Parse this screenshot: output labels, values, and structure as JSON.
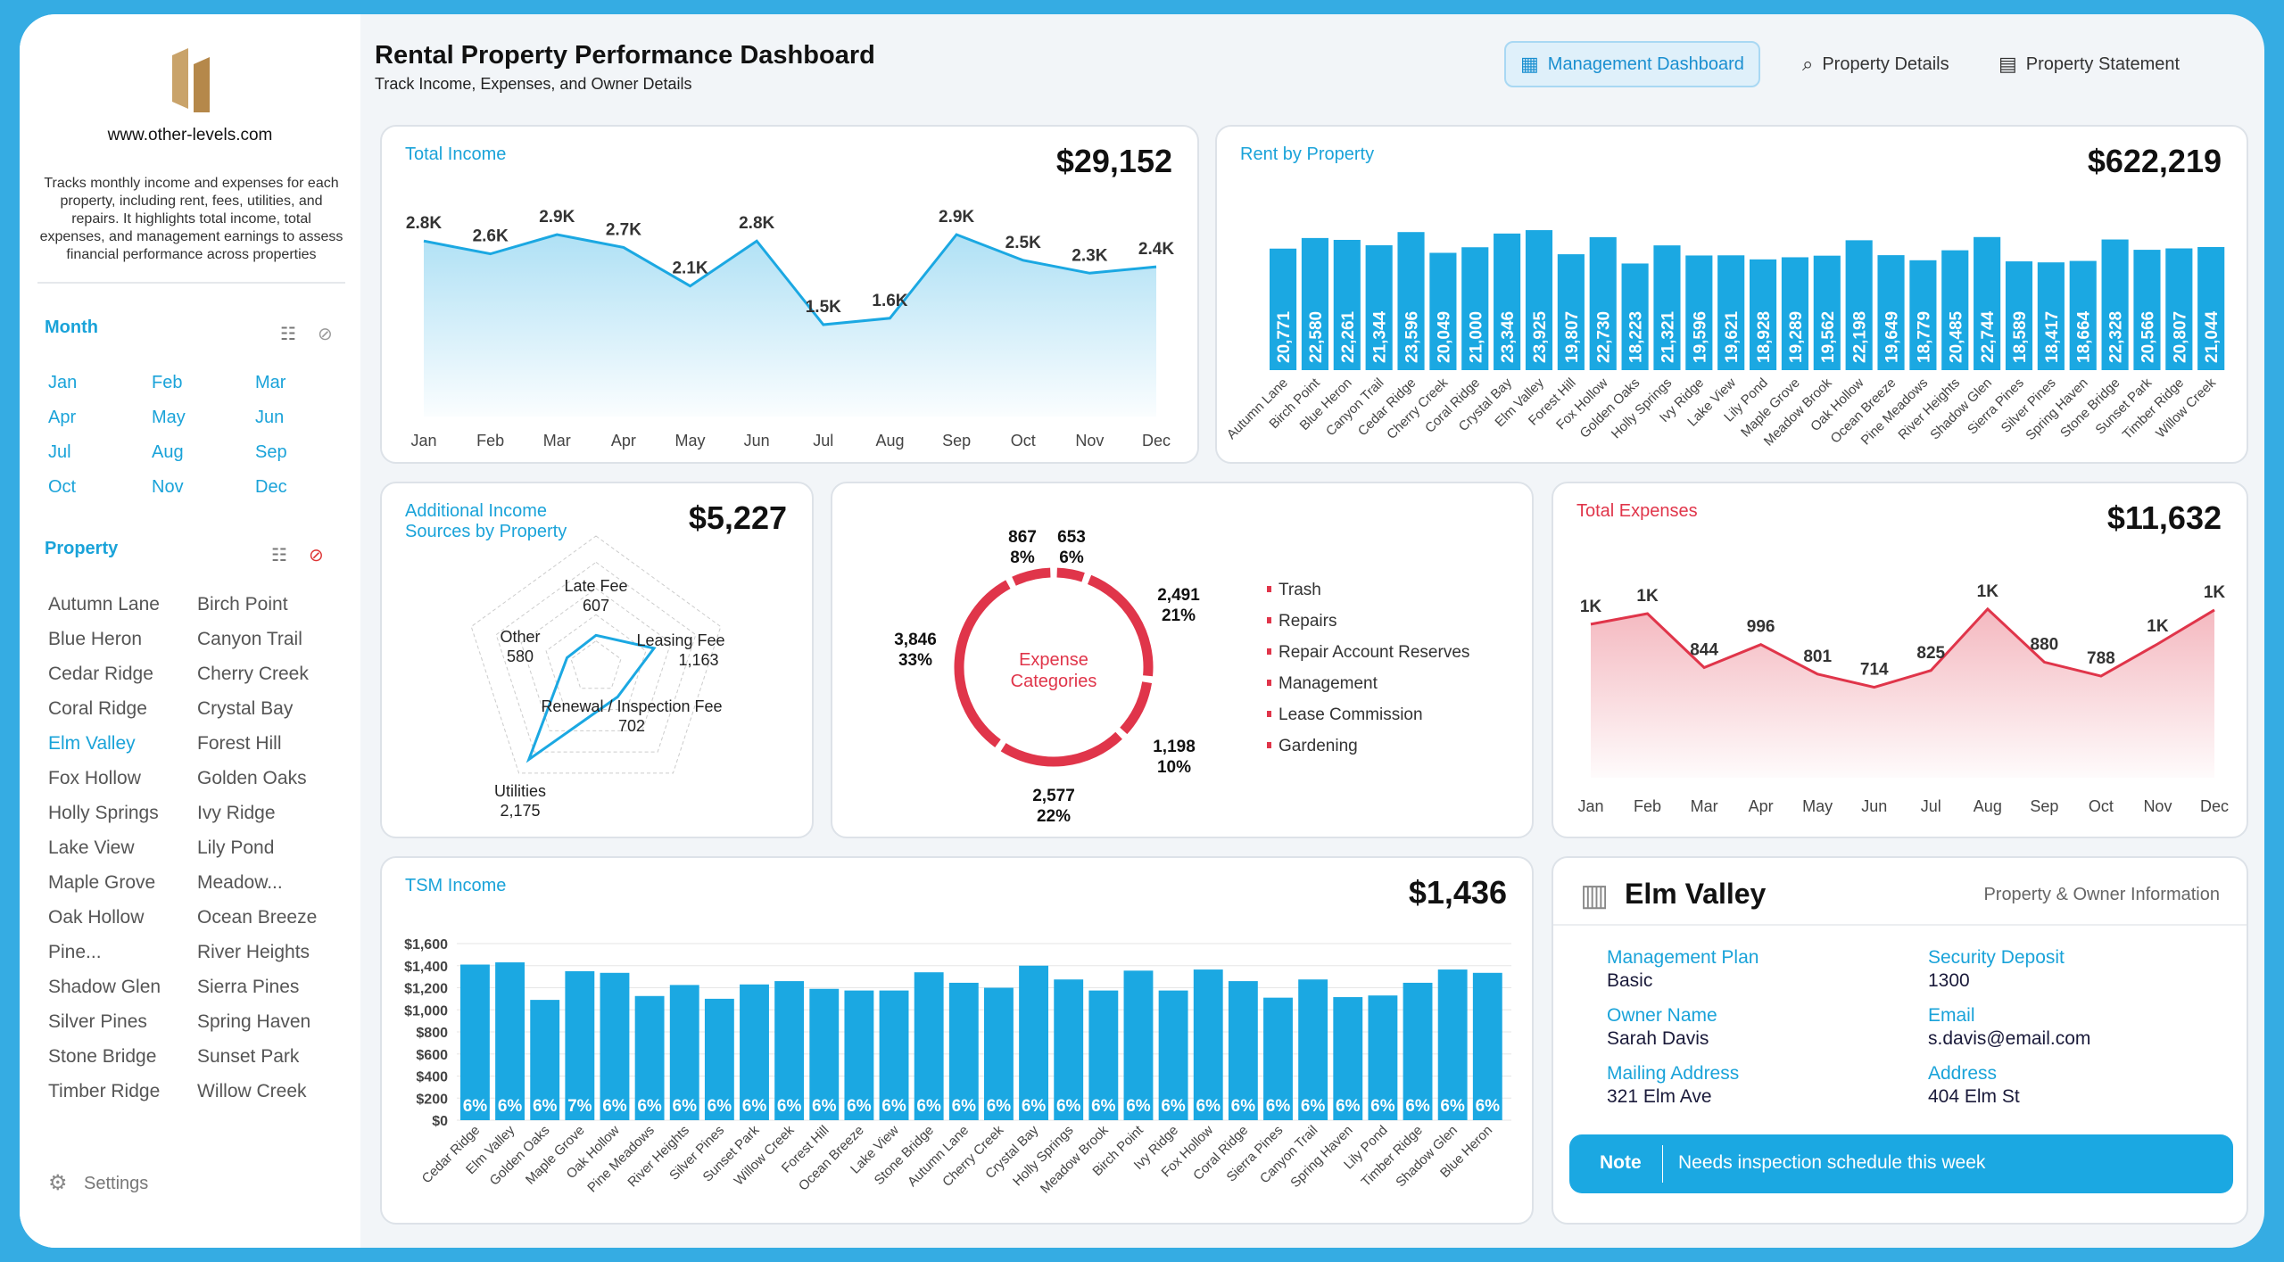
{
  "header": {
    "title": "Rental Property Performance Dashboard",
    "subtitle": "Track Income, Expenses, and Owner Details",
    "nav": [
      {
        "label": "Management Dashboard",
        "icon": "dashboard-icon",
        "active": true
      },
      {
        "label": "Property Details",
        "icon": "magnifier-chart-icon"
      },
      {
        "label": "Property Statement",
        "icon": "table-icon"
      }
    ]
  },
  "sidebar": {
    "logo_text": "www.other-levels.com",
    "description": "Tracks monthly income and expenses for each property, including rent, fees, utilities, and repairs. It highlights total income, total expenses, and management earnings to assess financial performance across properties",
    "month_title": "Month",
    "months": [
      "Jan",
      "Feb",
      "Mar",
      "Apr",
      "May",
      "Jun",
      "Jul",
      "Aug",
      "Sep",
      "Oct",
      "Nov",
      "Dec"
    ],
    "property_title": "Property",
    "selected_property": "Elm Valley",
    "properties": [
      "Autumn Lane",
      "Birch Point",
      "Blue Heron",
      "Canyon Trail",
      "Cedar Ridge",
      "Cherry Creek",
      "Coral Ridge",
      "Crystal Bay",
      "Elm Valley",
      "Forest Hill",
      "Fox Hollow",
      "Golden Oaks",
      "Holly Springs",
      "Ivy Ridge",
      "Lake View",
      "Lily Pond",
      "Maple Grove",
      "Meadow...",
      "Oak Hollow",
      "Ocean Breeze",
      "Pine...",
      "River Heights",
      "Shadow Glen",
      "Sierra Pines",
      "Silver Pines",
      "Spring Haven",
      "Stone Bridge",
      "Sunset Park",
      "Timber Ridge",
      "Willow Creek"
    ],
    "settings_label": "Settings"
  },
  "colors": {
    "accent": "#1aa3d9",
    "bar": "#1ba8e2",
    "expense": "#e0354a",
    "frame": "#35ace3"
  },
  "cards": {
    "total_income": {
      "title": "Total Income",
      "value": "$29,152"
    },
    "rent": {
      "title": "Rent by Property",
      "value": "$622,219"
    },
    "additional": {
      "title1": "Additional Income",
      "title2": "Sources by Property",
      "value": "$5,227"
    },
    "expense_cat": {
      "center1": "Expense",
      "center2": "Categories"
    },
    "total_expenses": {
      "title": "Total Expenses",
      "value": "$11,632"
    },
    "tsm": {
      "title": "TSM Income",
      "value": "$1,436"
    },
    "property_info": {
      "name": "Elm Valley",
      "subtitle": "Property & Owner Information",
      "fields": [
        {
          "label": "Management Plan",
          "value": "Basic"
        },
        {
          "label": "Security Deposit",
          "value": "1300"
        },
        {
          "label": "Owner Name",
          "value": "Sarah Davis"
        },
        {
          "label": "Email",
          "value": "s.davis@email.com"
        },
        {
          "label": "Mailing Address",
          "value": "321 Elm Ave"
        },
        {
          "label": "Address",
          "value": "404 Elm St"
        }
      ],
      "note_label": "Note",
      "note": "Needs inspection schedule this week"
    }
  },
  "chart_data": [
    {
      "id": "income",
      "type": "area",
      "categories": [
        "Jan",
        "Feb",
        "Mar",
        "Apr",
        "May",
        "Jun",
        "Jul",
        "Aug",
        "Sep",
        "Oct",
        "Nov",
        "Dec"
      ],
      "values": [
        2.8,
        2.6,
        2.9,
        2.7,
        2.1,
        2.8,
        1.5,
        1.6,
        2.9,
        2.5,
        2.3,
        2.4
      ],
      "labels": [
        "2.8K",
        "2.6K",
        "2.9K",
        "2.7K",
        "2.1K",
        "2.8K",
        "1.5K",
        "1.6K",
        "2.9K",
        "2.5K",
        "2.3K",
        "2.4K"
      ]
    },
    {
      "id": "rent",
      "type": "bar",
      "categories": [
        "Autumn Lane",
        "Birch Point",
        "Blue Heron",
        "Canyon Trail",
        "Cedar Ridge",
        "Cherry Creek",
        "Coral Ridge",
        "Crystal Bay",
        "Elm Valley",
        "Forest Hill",
        "Fox Hollow",
        "Golden Oaks",
        "Holly Springs",
        "Ivy Ridge",
        "Lake View",
        "Lily Pond",
        "Maple Grove",
        "Meadow Brook",
        "Oak Hollow",
        "Ocean Breeze",
        "Pine Meadows",
        "River Heights",
        "Shadow Glen",
        "Sierra Pines",
        "Silver Pines",
        "Spring Haven",
        "Stone Bridge",
        "Sunset Park",
        "Timber Ridge",
        "Willow Creek"
      ],
      "values": [
        20771,
        22580,
        22261,
        21344,
        23596,
        20049,
        21000,
        23346,
        23925,
        19807,
        22730,
        18223,
        21321,
        19596,
        19621,
        18928,
        19289,
        19562,
        22198,
        19649,
        18779,
        20485,
        22744,
        18589,
        18417,
        18664,
        22328,
        20566,
        20807,
        21044
      ]
    },
    {
      "id": "radar",
      "type": "radar",
      "categories": [
        "Late Fee",
        "Leasing Fee",
        "Renewal / Inspection Fee",
        "Utilities",
        "Other"
      ],
      "values": [
        607,
        1163,
        702,
        2175,
        580
      ],
      "rmax": 2500
    },
    {
      "id": "donut",
      "type": "pie",
      "legend": [
        "Trash",
        "Repairs",
        "Repair Account Reserves",
        "Management",
        "Lease Commission",
        "Gardening"
      ],
      "values": [
        653,
        2491,
        1198,
        2577,
        3846,
        867
      ],
      "percents": [
        "6%",
        "21%",
        "10%",
        "22%",
        "33%",
        "8%"
      ]
    },
    {
      "id": "expenses",
      "type": "area",
      "categories": [
        "Jan",
        "Feb",
        "Mar",
        "Apr",
        "May",
        "Jun",
        "Jul",
        "Aug",
        "Sep",
        "Oct",
        "Nov",
        "Dec"
      ],
      "values": [
        1130,
        1200,
        844,
        996,
        801,
        714,
        825,
        1230,
        880,
        788,
        1000,
        1224
      ],
      "labels": [
        "1K",
        "1K",
        "844",
        "996",
        "801",
        "714",
        "825",
        "1K",
        "880",
        "788",
        "1K",
        "1K"
      ]
    },
    {
      "id": "tsm",
      "type": "bar",
      "categories": [
        "Cedar Ridge",
        "Elm Valley",
        "Golden Oaks",
        "Maple Grove",
        "Oak Hollow",
        "Pine Meadows",
        "River Heights",
        "Silver Pines",
        "Sunset Park",
        "Willow Creek",
        "Forest Hill",
        "Ocean Breeze",
        "Lake View",
        "Stone Bridge",
        "Autumn Lane",
        "Cherry Creek",
        "Crystal Bay",
        "Holly Springs",
        "Meadow Brook",
        "Birch Point",
        "Ivy Ridge",
        "Fox Hollow",
        "Coral Ridge",
        "Sierra Pines",
        "Canyon Trail",
        "Spring Haven",
        "Lily Pond",
        "Timber Ridge",
        "Shadow Glen",
        "Blue Heron"
      ],
      "values": [
        1410,
        1430,
        1090,
        1350,
        1335,
        1125,
        1225,
        1100,
        1230,
        1260,
        1190,
        1175,
        1175,
        1340,
        1245,
        1200,
        1400,
        1275,
        1175,
        1355,
        1175,
        1365,
        1260,
        1110,
        1275,
        1115,
        1130,
        1245,
        1365,
        1335
      ],
      "percents": [
        "6%",
        "6%",
        "6%",
        "7%",
        "6%",
        "6%",
        "6%",
        "6%",
        "6%",
        "6%",
        "6%",
        "6%",
        "6%",
        "6%",
        "6%",
        "6%",
        "6%",
        "6%",
        "6%",
        "6%",
        "6%",
        "6%",
        "6%",
        "6%",
        "6%",
        "6%",
        "6%",
        "6%",
        "6%",
        "6%"
      ],
      "yticks": [
        "$0",
        "$200",
        "$400",
        "$600",
        "$800",
        "$1,000",
        "$1,200",
        "$1,400",
        "$1,600"
      ],
      "ylim": [
        0,
        1600
      ]
    }
  ]
}
